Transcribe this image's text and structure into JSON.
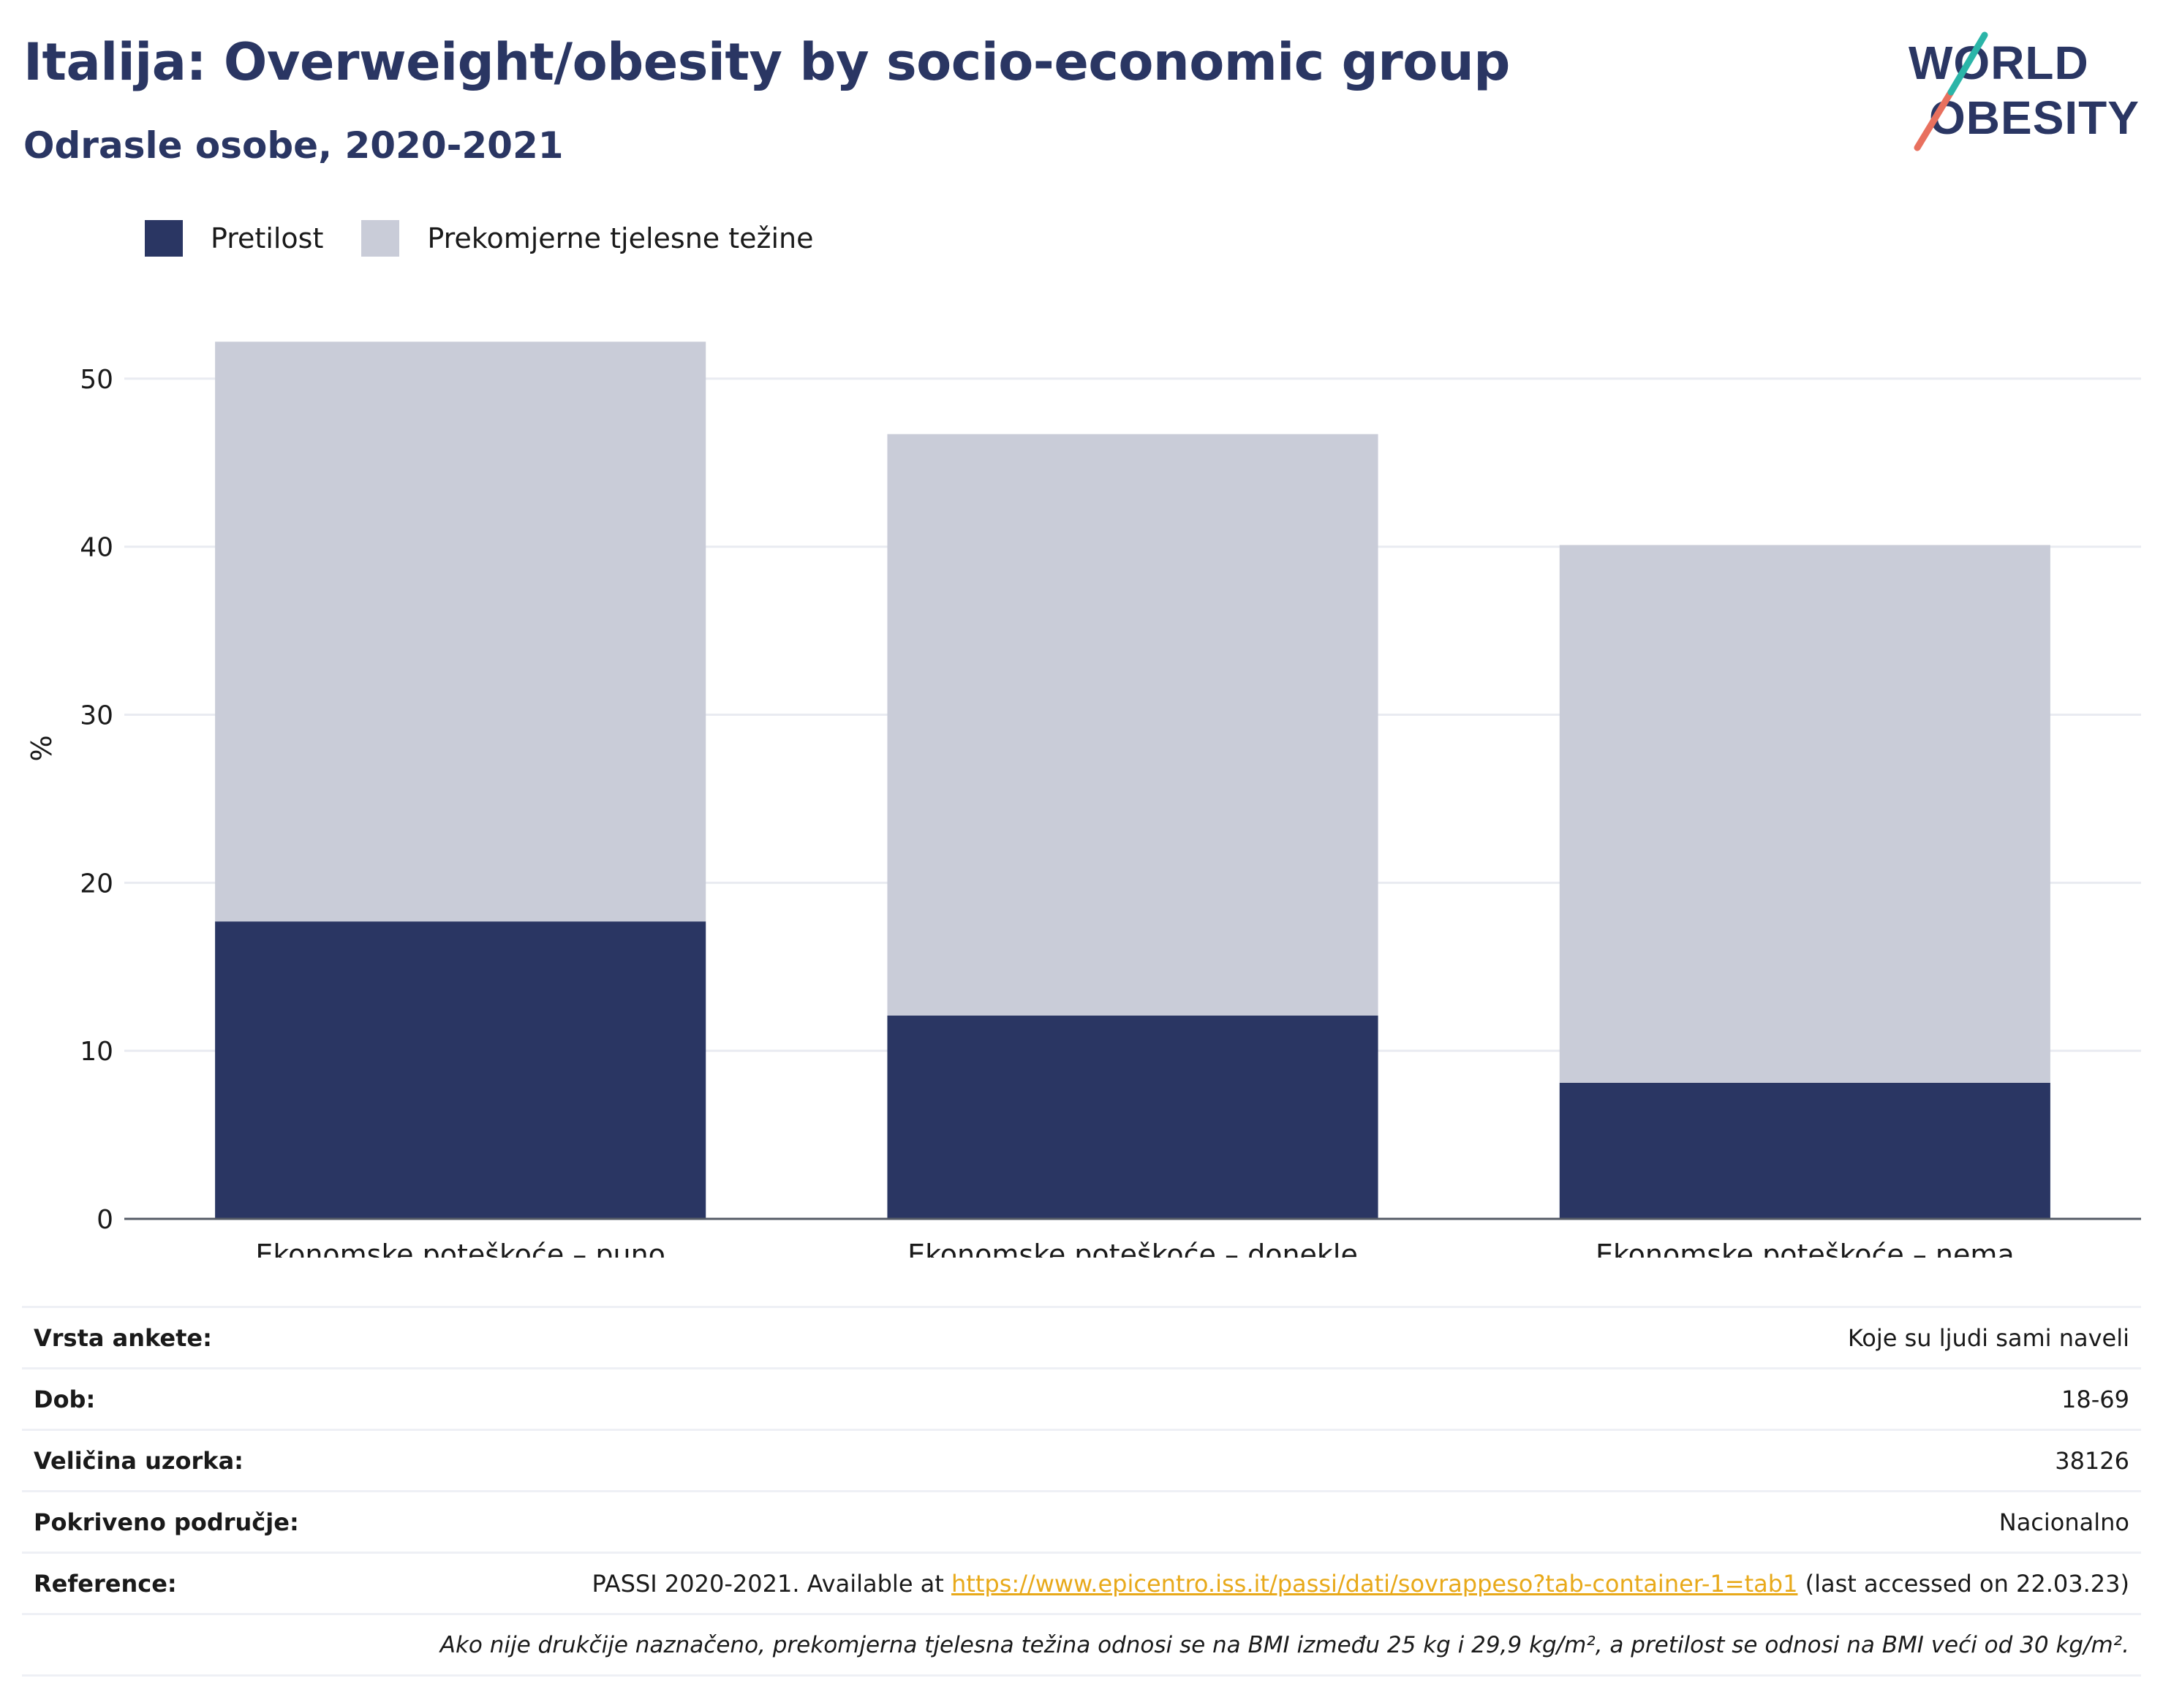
{
  "header": {
    "title": "Italija: Overweight/obesity by socio-economic group",
    "subtitle": "Odrasle osobe, 2020-2021"
  },
  "logo": {
    "line1": "WORLD",
    "line2": "OBESITY"
  },
  "colors": {
    "title": "#2a3663",
    "obesity": "#2a3663",
    "overweight": "#c9ccd8",
    "link": "#e8a91a",
    "logo_teal": "#2bb5a8",
    "logo_coral": "#e8705e"
  },
  "legend": [
    {
      "label": "Pretilost",
      "color": "#2a3663"
    },
    {
      "label": "Prekomjerne tjelesne težine",
      "color": "#c9ccd8"
    }
  ],
  "chart_data": {
    "type": "bar",
    "stacked": true,
    "categories": [
      "Ekonomske poteškoće – puno",
      "Ekonomske poteškoće – donekle",
      "Ekonomske poteškoće – nema"
    ],
    "series": [
      {
        "name": "Pretilost",
        "values": [
          17.7,
          12.1,
          8.1
        ]
      },
      {
        "name": "Prekomjerne tjelesne težine",
        "values": [
          34.5,
          34.6,
          32.0
        ]
      }
    ],
    "ylabel": "%",
    "ylim": [
      0,
      56
    ],
    "yticks": [
      0,
      10,
      20,
      30,
      40,
      50
    ],
    "grid": true,
    "legend_position": "top-left"
  },
  "meta": [
    {
      "key": "Vrsta ankete:",
      "value": "Koje su ljudi sami naveli"
    },
    {
      "key": "Dob:",
      "value": "18-69"
    },
    {
      "key": "Veličina uzorka:",
      "value": "38126"
    },
    {
      "key": "Pokriveno područje:",
      "value": "Nacionalno"
    }
  ],
  "reference": {
    "key": "Reference:",
    "prefix": "PASSI 2020-2021. Available at ",
    "link": "https://www.epicentro.iss.it/passi/dati/sovrappeso?tab-container-1=tab1",
    "suffix": " (last accessed on 22.03.23)"
  },
  "footnote": "Ako nije drukčije naznačeno, prekomjerna tjelesna težina odnosi se na BMI između 25 kg i 29,9 kg/m², a pretilost se odnosi na BMI veći od 30 kg/m²."
}
